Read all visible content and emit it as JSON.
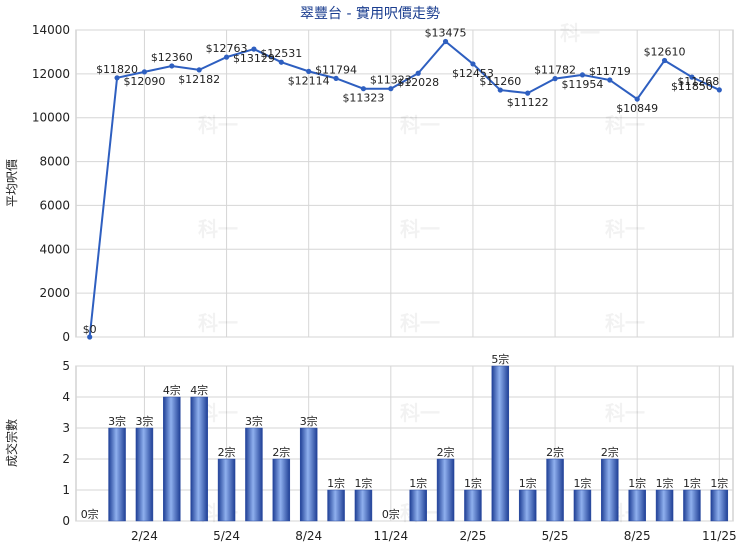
{
  "chart_data": [
    {
      "type": "line",
      "title": "翠豐台 - 實用呎價走勢",
      "ylabel": "平均呎價",
      "ylim": [
        0,
        14000
      ],
      "yticks": [
        0,
        2000,
        4000,
        6000,
        8000,
        10000,
        12000,
        14000
      ],
      "grid": true,
      "color": "#2e5fc0",
      "values": [
        0,
        11820,
        12090,
        12360,
        12182,
        12763,
        13129,
        12531,
        12114,
        11794,
        11323,
        11323,
        12028,
        13475,
        12453,
        11260,
        11122,
        11782,
        11954,
        11719,
        10849,
        12610,
        11850,
        11268
      ],
      "labels": [
        "$0",
        "$11820",
        "$12090",
        "$12360",
        "$12182",
        "$12763",
        "$13129",
        "$12531",
        "$12114",
        "$11794",
        "$11323",
        "$11323",
        "$12028",
        "$13475",
        "$12453",
        "$11260",
        "$11122",
        "$11782",
        "$11954",
        "$11719",
        "$10849",
        "$12610",
        "$11850",
        "$11268"
      ]
    },
    {
      "type": "bar",
      "ylabel": "成交宗數",
      "ylim": [
        0,
        5
      ],
      "yticks": [
        0,
        1,
        2,
        3,
        4,
        5
      ],
      "grid": true,
      "color": "#3a64c4",
      "values": [
        0,
        3,
        3,
        4,
        4,
        2,
        3,
        2,
        3,
        1,
        1,
        0,
        1,
        2,
        1,
        5,
        1,
        2,
        1,
        2,
        1,
        1,
        1,
        1
      ],
      "labels": [
        "0宗",
        "3宗",
        "3宗",
        "4宗",
        "4宗",
        "2宗",
        "3宗",
        "2宗",
        "3宗",
        "1宗",
        "1宗",
        "0宗",
        "1宗",
        "2宗",
        "1宗",
        "5宗",
        "1宗",
        "2宗",
        "1宗",
        "2宗",
        "1宗",
        "1宗",
        "1宗",
        "1宗"
      ],
      "xtick_labels": [
        {
          "index": 2,
          "label": "2/24"
        },
        {
          "index": 5,
          "label": "5/24"
        },
        {
          "index": 8,
          "label": "8/24"
        },
        {
          "index": 11,
          "label": "11/24"
        },
        {
          "index": 14,
          "label": "2/25"
        },
        {
          "index": 17,
          "label": "5/25"
        },
        {
          "index": 20,
          "label": "8/25"
        },
        {
          "index": 23,
          "label": "11/25"
        }
      ]
    }
  ],
  "watermark": "科一"
}
